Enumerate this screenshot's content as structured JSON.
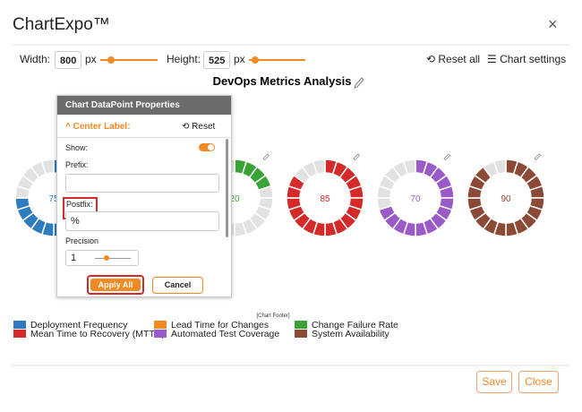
{
  "header": {
    "title": "ChartExpo™",
    "close": "×"
  },
  "toolbar": {
    "width_label": "Width:",
    "width": 800,
    "width_unit": "px",
    "height_label": "Height:",
    "height": 525,
    "height_unit": "px",
    "reset_all": "Reset all",
    "chart_settings": "Chart settings"
  },
  "chart": {
    "title": "DevOps Metrics Analysis",
    "footer": "[Chart Footer]",
    "items": [
      {
        "name": "Deployment Frequency",
        "color": "#2e7bbf",
        "value": 75
      },
      {
        "name": "Lead Time for Changes",
        "color": "#f08a24"
      },
      {
        "name": "Change Failure Rate",
        "color": "#3aa335",
        "value": 20
      },
      {
        "name": "Mean Time to Recovery (MTTR)",
        "color": "#d42a2a",
        "value": 85
      },
      {
        "name": "Automated Test Coverage",
        "color": "#9a5bc8",
        "value": 70
      },
      {
        "name": "System Availability",
        "color": "#8b4a36",
        "value": 90
      }
    ]
  },
  "panel": {
    "title": "Chart DataPoint Properties",
    "section": "Center Label:",
    "reset": "Reset",
    "show_label": "Show:",
    "show": true,
    "prefix_label": "Prefix:",
    "postfix_label": "Postfix:",
    "postfix": "%",
    "precision_label": "Precision",
    "precision": 1,
    "apply": "Apply All",
    "cancel": "Cancel"
  },
  "footer": {
    "save": "Save",
    "close": "Close"
  }
}
